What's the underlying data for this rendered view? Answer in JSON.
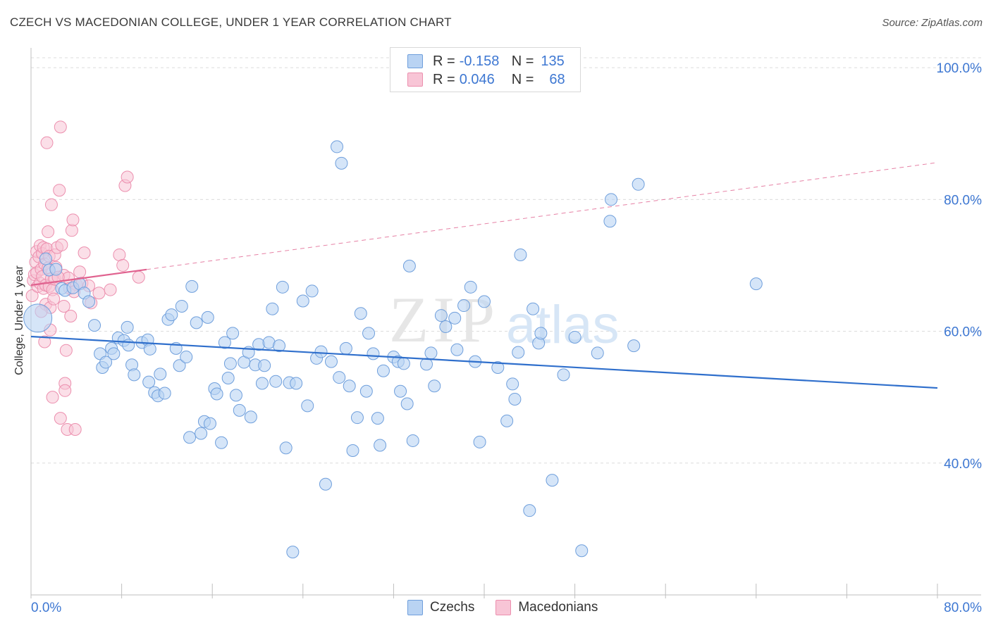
{
  "title": "CZECH VS MACEDONIAN COLLEGE, UNDER 1 YEAR CORRELATION CHART",
  "source": "Source: ZipAtlas.com",
  "watermark": {
    "zip": "ZIP",
    "atlas": "atlas"
  },
  "colors": {
    "blue_fill": "#b9d3f3",
    "blue_stroke": "#6f9fdc",
    "blue_line": "#2f6fcc",
    "pink_fill": "#f8c5d6",
    "pink_stroke": "#ec8fae",
    "pink_line": "#e0628f",
    "axis_text": "#3d77d2",
    "grid": "#dcdcdc"
  },
  "legend": {
    "rows": [
      {
        "r_label": "R =",
        "r_value": "-0.158",
        "n_label": "N =",
        "n_value": "135",
        "color": "#b9d3f3",
        "border": "#6f9fdc"
      },
      {
        "r_label": "R =",
        "r_value": "0.046",
        "n_label": "N =",
        "n_value": "68",
        "color": "#f8c5d6",
        "border": "#ec8fae"
      }
    ]
  },
  "bottom_legend": [
    {
      "label": "Czechs",
      "color": "#b9d3f3",
      "border": "#6f9fdc"
    },
    {
      "label": "Macedonians",
      "color": "#f8c5d6",
      "border": "#ec8fae"
    }
  ],
  "chart_data": {
    "type": "scatter",
    "title": "CZECH VS MACEDONIAN COLLEGE, UNDER 1 YEAR CORRELATION CHART",
    "xlabel": "",
    "ylabel": "College, Under 1 year",
    "xlim": [
      0,
      80
    ],
    "ylim": [
      20,
      103
    ],
    "x_tick_labels": [
      {
        "value": 0,
        "label": "0.0%"
      },
      {
        "value": 80,
        "label": "80.0%"
      }
    ],
    "y_tick_labels": [
      {
        "value": 100,
        "label": "100.0%"
      },
      {
        "value": 80,
        "label": "80.0%"
      },
      {
        "value": 60,
        "label": "60.0%"
      },
      {
        "value": 40,
        "label": "40.0%"
      }
    ],
    "series": [
      {
        "name": "Czechs",
        "r": -0.158,
        "n": 135,
        "trend": {
          "x": [
            0,
            80
          ],
          "y": [
            59.2,
            51.4
          ],
          "style": "solid"
        },
        "points": [
          [
            0.6,
            62.0
          ],
          [
            1.3,
            71.0
          ],
          [
            1.6,
            69.3
          ],
          [
            2.2,
            69.4
          ],
          [
            2.7,
            66.5
          ],
          [
            3.0,
            66.2
          ],
          [
            3.7,
            66.6
          ],
          [
            4.3,
            67.2
          ],
          [
            4.7,
            65.8
          ],
          [
            5.1,
            64.5
          ],
          [
            5.6,
            60.9
          ],
          [
            6.1,
            56.6
          ],
          [
            6.3,
            54.5
          ],
          [
            6.6,
            55.3
          ],
          [
            7.1,
            57.4
          ],
          [
            7.3,
            56.6
          ],
          [
            7.7,
            59.0
          ],
          [
            8.2,
            58.6
          ],
          [
            8.5,
            60.6
          ],
          [
            8.6,
            57.9
          ],
          [
            8.9,
            54.9
          ],
          [
            9.1,
            53.4
          ],
          [
            9.8,
            58.3
          ],
          [
            10.3,
            58.7
          ],
          [
            10.4,
            52.3
          ],
          [
            10.5,
            57.3
          ],
          [
            10.9,
            50.7
          ],
          [
            11.2,
            50.2
          ],
          [
            11.4,
            53.5
          ],
          [
            11.8,
            50.6
          ],
          [
            12.1,
            61.8
          ],
          [
            12.4,
            62.5
          ],
          [
            12.8,
            57.4
          ],
          [
            13.1,
            54.8
          ],
          [
            13.3,
            63.8
          ],
          [
            13.7,
            56.1
          ],
          [
            14.0,
            43.9
          ],
          [
            14.2,
            66.8
          ],
          [
            14.6,
            61.3
          ],
          [
            15.0,
            44.5
          ],
          [
            15.3,
            46.3
          ],
          [
            15.6,
            62.1
          ],
          [
            15.8,
            46.0
          ],
          [
            16.2,
            51.3
          ],
          [
            16.4,
            50.5
          ],
          [
            16.8,
            43.1
          ],
          [
            17.1,
            58.3
          ],
          [
            17.4,
            52.9
          ],
          [
            17.6,
            55.1
          ],
          [
            17.8,
            59.7
          ],
          [
            18.1,
            50.3
          ],
          [
            18.4,
            48.0
          ],
          [
            18.8,
            55.3
          ],
          [
            19.2,
            56.8
          ],
          [
            19.4,
            47.0
          ],
          [
            19.8,
            54.9
          ],
          [
            20.1,
            58.0
          ],
          [
            20.4,
            52.1
          ],
          [
            20.6,
            54.8
          ],
          [
            21.0,
            58.3
          ],
          [
            21.3,
            63.4
          ],
          [
            21.6,
            52.4
          ],
          [
            21.9,
            57.8
          ],
          [
            22.2,
            66.7
          ],
          [
            22.5,
            42.3
          ],
          [
            22.8,
            52.2
          ],
          [
            23.1,
            26.5
          ],
          [
            23.4,
            52.1
          ],
          [
            24.0,
            64.6
          ],
          [
            24.4,
            48.7
          ],
          [
            24.8,
            66.1
          ],
          [
            25.2,
            55.9
          ],
          [
            25.6,
            56.9
          ],
          [
            26.0,
            36.8
          ],
          [
            26.5,
            55.4
          ],
          [
            27.0,
            88.0
          ],
          [
            27.2,
            53.0
          ],
          [
            27.4,
            85.5
          ],
          [
            27.8,
            57.4
          ],
          [
            28.1,
            51.7
          ],
          [
            28.4,
            41.9
          ],
          [
            28.8,
            46.9
          ],
          [
            29.1,
            62.7
          ],
          [
            29.6,
            50.9
          ],
          [
            29.8,
            59.7
          ],
          [
            30.2,
            56.6
          ],
          [
            30.6,
            46.8
          ],
          [
            30.8,
            42.7
          ],
          [
            31.1,
            54.0
          ],
          [
            32.0,
            56.1
          ],
          [
            32.4,
            55.4
          ],
          [
            32.6,
            50.9
          ],
          [
            32.9,
            55.1
          ],
          [
            33.2,
            49.0
          ],
          [
            33.4,
            69.9
          ],
          [
            33.7,
            43.4
          ],
          [
            34.9,
            55.0
          ],
          [
            35.3,
            56.7
          ],
          [
            35.6,
            51.7
          ],
          [
            36.2,
            62.4
          ],
          [
            36.6,
            60.7
          ],
          [
            37.4,
            62.0
          ],
          [
            37.6,
            57.2
          ],
          [
            38.2,
            63.9
          ],
          [
            38.8,
            66.7
          ],
          [
            39.2,
            55.4
          ],
          [
            39.6,
            43.2
          ],
          [
            40.0,
            64.5
          ],
          [
            41.2,
            54.5
          ],
          [
            42.0,
            46.4
          ],
          [
            42.5,
            52.0
          ],
          [
            42.7,
            49.7
          ],
          [
            43.0,
            56.8
          ],
          [
            43.2,
            71.6
          ],
          [
            44.0,
            32.8
          ],
          [
            44.3,
            63.4
          ],
          [
            44.8,
            58.2
          ],
          [
            45.0,
            59.7
          ],
          [
            46.0,
            37.4
          ],
          [
            47.0,
            53.4
          ],
          [
            48.0,
            59.1
          ],
          [
            48.6,
            26.7
          ],
          [
            50.0,
            56.7
          ],
          [
            51.1,
            76.7
          ],
          [
            51.2,
            80.0
          ],
          [
            53.2,
            57.8
          ],
          [
            53.6,
            82.3
          ],
          [
            64.0,
            67.2
          ]
        ]
      },
      {
        "name": "Macedonians",
        "r": 0.046,
        "n": 68,
        "trend": {
          "x": [
            0,
            80
          ],
          "y": [
            67.0,
            85.6
          ],
          "solid_until": 10.2
        },
        "points": [
          [
            0.1,
            65.4
          ],
          [
            0.2,
            67.7
          ],
          [
            0.3,
            68.6
          ],
          [
            0.4,
            70.5
          ],
          [
            0.5,
            72.1
          ],
          [
            0.5,
            68.9
          ],
          [
            0.6,
            66.8
          ],
          [
            0.7,
            71.3
          ],
          [
            0.8,
            73.0
          ],
          [
            0.8,
            67.3
          ],
          [
            0.9,
            69.4
          ],
          [
            1.0,
            71.8
          ],
          [
            1.0,
            68.3
          ],
          [
            1.1,
            72.7
          ],
          [
            1.1,
            66.5
          ],
          [
            1.2,
            70.2
          ],
          [
            1.2,
            58.4
          ],
          [
            1.3,
            64.1
          ],
          [
            1.3,
            67.0
          ],
          [
            1.4,
            72.5
          ],
          [
            1.5,
            69.6
          ],
          [
            1.5,
            75.1
          ],
          [
            1.6,
            71.4
          ],
          [
            1.6,
            66.8
          ],
          [
            1.7,
            63.6
          ],
          [
            1.7,
            60.2
          ],
          [
            1.8,
            68.0
          ],
          [
            1.8,
            79.2
          ],
          [
            1.9,
            66.3
          ],
          [
            1.9,
            50.0
          ],
          [
            2.0,
            64.9
          ],
          [
            2.1,
            71.6
          ],
          [
            2.1,
            67.9
          ],
          [
            2.2,
            69.7
          ],
          [
            2.3,
            72.7
          ],
          [
            2.5,
            81.4
          ],
          [
            2.6,
            46.8
          ],
          [
            2.6,
            91.0
          ],
          [
            2.7,
            73.1
          ],
          [
            2.9,
            68.5
          ],
          [
            2.9,
            63.8
          ],
          [
            3.0,
            52.1
          ],
          [
            3.0,
            51.0
          ],
          [
            3.1,
            57.1
          ],
          [
            3.2,
            45.1
          ],
          [
            3.3,
            68.1
          ],
          [
            3.4,
            66.5
          ],
          [
            3.5,
            62.3
          ],
          [
            3.6,
            75.3
          ],
          [
            3.7,
            76.9
          ],
          [
            3.9,
            45.1
          ],
          [
            4.0,
            67.1
          ],
          [
            4.3,
            69.0
          ],
          [
            4.5,
            67.3
          ],
          [
            4.7,
            71.9
          ],
          [
            5.1,
            66.9
          ],
          [
            5.3,
            64.3
          ],
          [
            6.0,
            65.8
          ],
          [
            7.0,
            66.3
          ],
          [
            7.8,
            71.6
          ],
          [
            8.1,
            70.0
          ],
          [
            8.3,
            82.1
          ],
          [
            8.5,
            83.4
          ],
          [
            9.5,
            68.2
          ],
          [
            1.4,
            88.6
          ],
          [
            0.9,
            63.0
          ],
          [
            2.4,
            68.2
          ],
          [
            3.8,
            66.0
          ]
        ]
      }
    ]
  }
}
